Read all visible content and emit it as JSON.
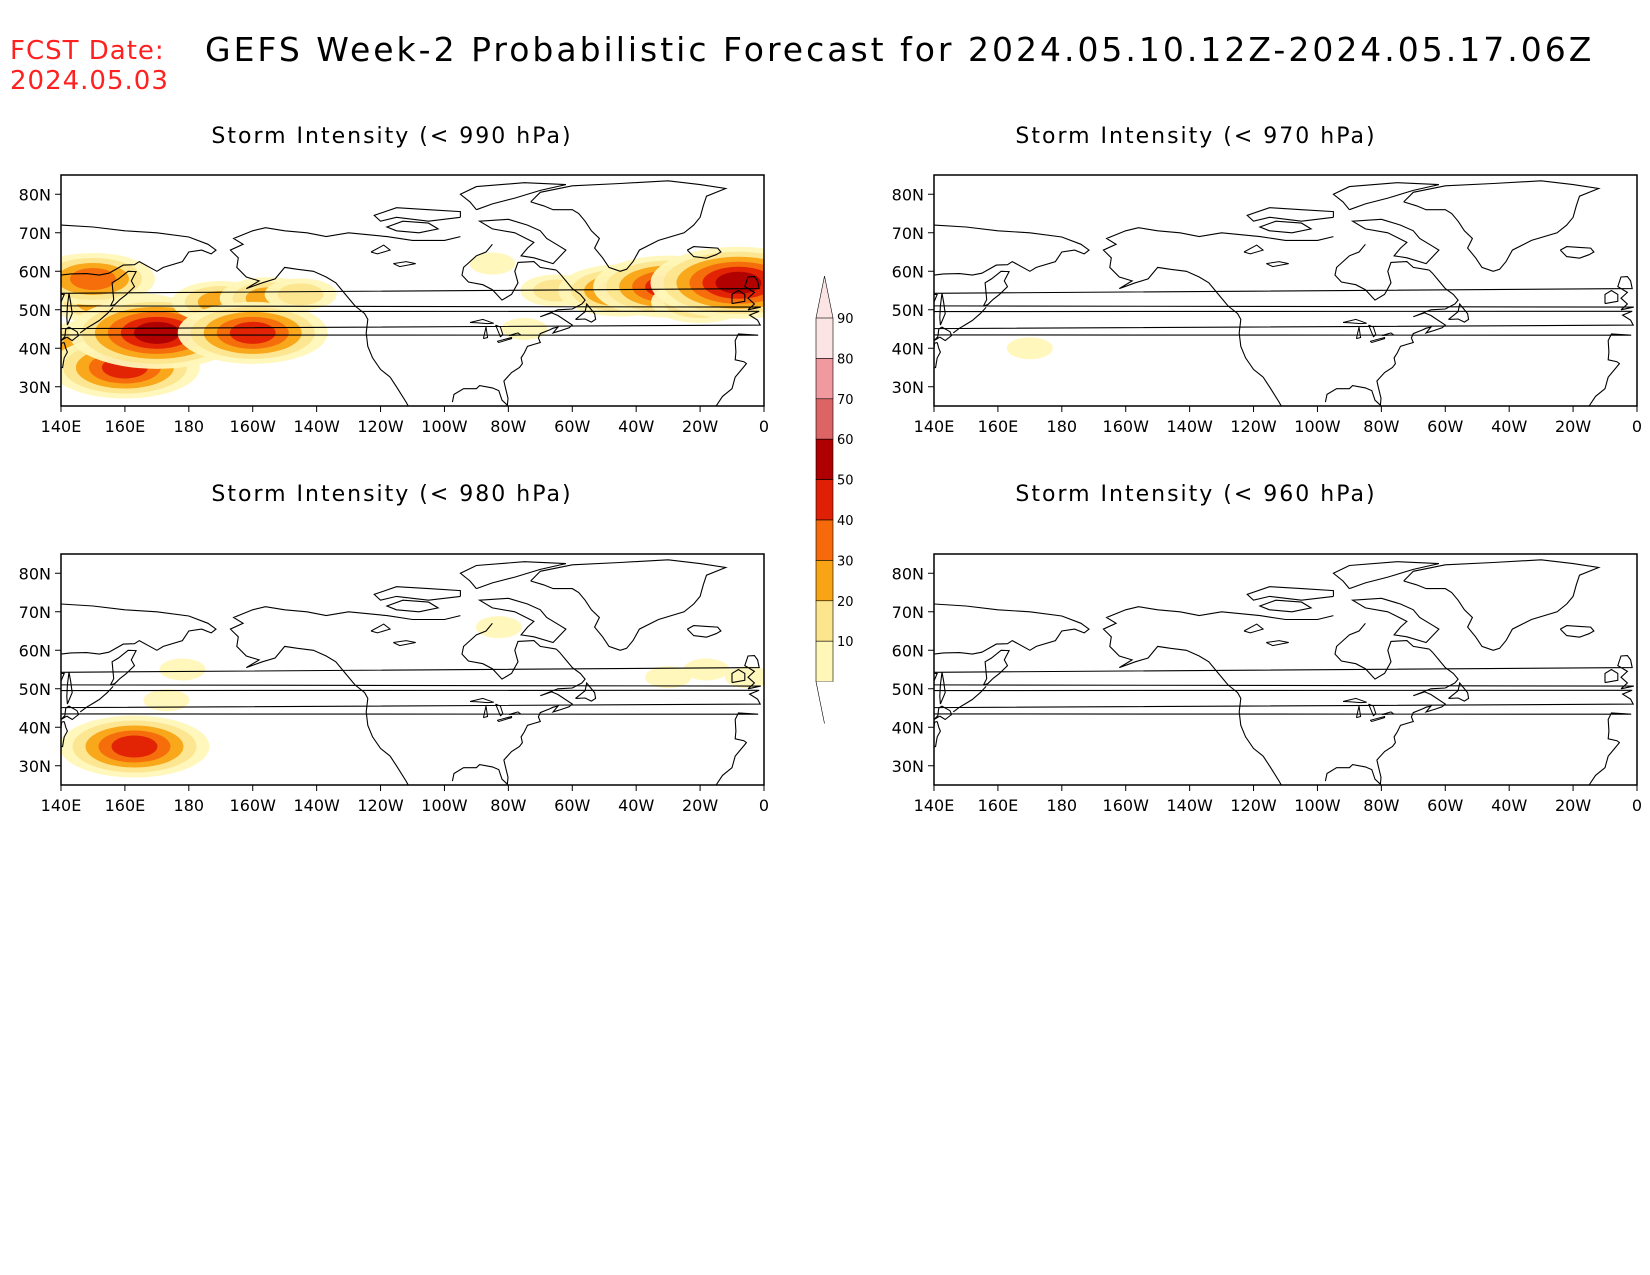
{
  "header": {
    "fcst_label": "FCST Date:",
    "fcst_date": "2024.05.03",
    "title": "GEFS Week-2 Probabilistic Forecast for 2024.05.10.12Z-2024.05.17.06Z"
  },
  "colors": {
    "fcst_text": "#ff2020",
    "levels": [
      "#fff7b8",
      "#fde58e",
      "#f8a414",
      "#f66a0c",
      "#e02004",
      "#ae0000",
      "#dc6464",
      "#f09aa0",
      "#fde4e4"
    ]
  },
  "axes": {
    "lon_labels": [
      "140E",
      "160E",
      "180",
      "160W",
      "140W",
      "120W",
      "100W",
      "80W",
      "60W",
      "40W",
      "20W",
      "0"
    ],
    "lat_labels": [
      "80N",
      "70N",
      "60N",
      "50N",
      "40N",
      "30N"
    ]
  },
  "panels": [
    {
      "id": "p990",
      "title": "Storm Intensity (< 990 hPa)"
    },
    {
      "id": "p970",
      "title": "Storm Intensity (< 970 hPa)"
    },
    {
      "id": "p980",
      "title": "Storm Intensity (< 980 hPa)"
    },
    {
      "id": "p960",
      "title": "Storm Intensity (< 960 hPa)"
    }
  ],
  "colorbar": {
    "labels": [
      "90",
      "80",
      "70",
      "60",
      "50",
      "40",
      "30",
      "20",
      "10"
    ]
  },
  "probability_regions": {
    "p990": [
      {
        "lon": 152,
        "lat": 52,
        "level": 3
      },
      {
        "lon": 167,
        "lat": 50,
        "level": 2
      },
      {
        "lon": 150,
        "lat": 58,
        "level": 4
      },
      {
        "lon": 155,
        "lat": 40,
        "level": 5
      },
      {
        "lon": 160,
        "lat": 35,
        "level": 5
      },
      {
        "lon": 170,
        "lat": 44,
        "level": 6
      },
      {
        "lon": 190,
        "lat": 52,
        "level": 3
      },
      {
        "lon": 205,
        "lat": 53,
        "level": 3
      },
      {
        "lon": 215,
        "lat": 54,
        "level": 2
      },
      {
        "lon": 200,
        "lat": 44,
        "level": 5
      },
      {
        "lon": -65,
        "lat": 55,
        "level": 2
      },
      {
        "lon": -45,
        "lat": 55,
        "level": 4
      },
      {
        "lon": -30,
        "lat": 56,
        "level": 5
      },
      {
        "lon": -20,
        "lat": 52,
        "level": 3
      },
      {
        "lon": -8,
        "lat": 57,
        "level": 6
      },
      {
        "lon": -85,
        "lat": 62,
        "level": 1
      },
      {
        "lon": -75,
        "lat": 45,
        "level": 1
      }
    ],
    "p970": [
      {
        "lon": 170,
        "lat": 40,
        "level": 1
      }
    ],
    "p980": [
      {
        "lon": 163,
        "lat": 35,
        "level": 5
      },
      {
        "lon": 173,
        "lat": 47,
        "level": 1
      },
      {
        "lon": 178,
        "lat": 55,
        "level": 1
      },
      {
        "lon": -18,
        "lat": 55,
        "level": 1
      },
      {
        "lon": -30,
        "lat": 53,
        "level": 1
      },
      {
        "lon": -83,
        "lat": 66,
        "level": 1
      },
      {
        "lon": -5,
        "lat": 53,
        "level": 1
      }
    ],
    "p960": []
  }
}
